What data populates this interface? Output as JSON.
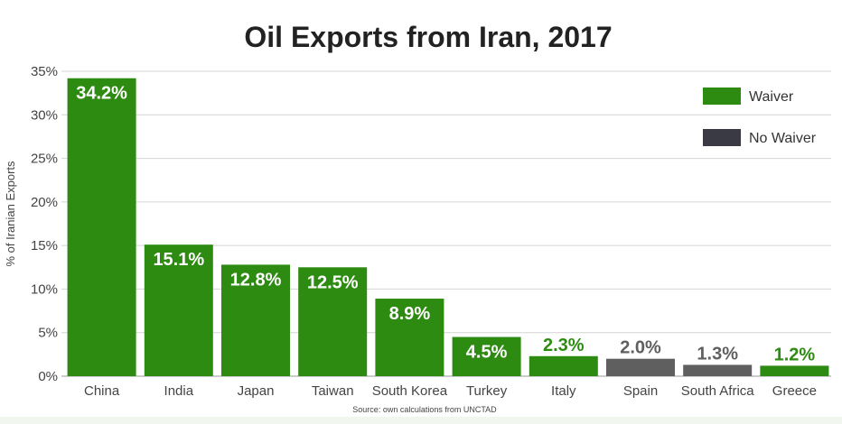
{
  "chart_data": {
    "type": "bar",
    "title": "Oil Exports from Iran, 2017",
    "ylabel": "% of Iranian Exports",
    "xlabel": "",
    "ylim": [
      0,
      35
    ],
    "yticks": [
      "0%",
      "5%",
      "10%",
      "15%",
      "20%",
      "25%",
      "30%",
      "35%"
    ],
    "ytick_values": [
      0,
      5,
      10,
      15,
      20,
      25,
      30,
      35
    ],
    "grid": true,
    "legend_position": "top-right",
    "categories": [
      "China",
      "India",
      "Japan",
      "Taiwan",
      "South Korea",
      "Turkey",
      "Italy",
      "Spain",
      "South Africa",
      "Greece"
    ],
    "values": [
      34.2,
      15.1,
      12.8,
      12.5,
      8.9,
      4.5,
      2.3,
      2.0,
      1.3,
      1.2
    ],
    "data_labels": [
      "34.2%",
      "15.1%",
      "12.8%",
      "12.5%",
      "8.9%",
      "4.5%",
      "2.3%",
      "2.0%",
      "1.3%",
      "1.2%"
    ],
    "group": [
      "Waiver",
      "Waiver",
      "Waiver",
      "Waiver",
      "Waiver",
      "Waiver",
      "Waiver",
      "No Waiver",
      "No Waiver",
      "Waiver"
    ],
    "legend": [
      {
        "name": "Waiver",
        "color": "#2e8b12"
      },
      {
        "name": "No Waiver",
        "color": "#3a3a44"
      }
    ],
    "bar_colors": {
      "Waiver": "#2e8b12",
      "No Waiver": "#5f5f5f"
    },
    "source": "Source:  own calculations from UNCTAD"
  }
}
